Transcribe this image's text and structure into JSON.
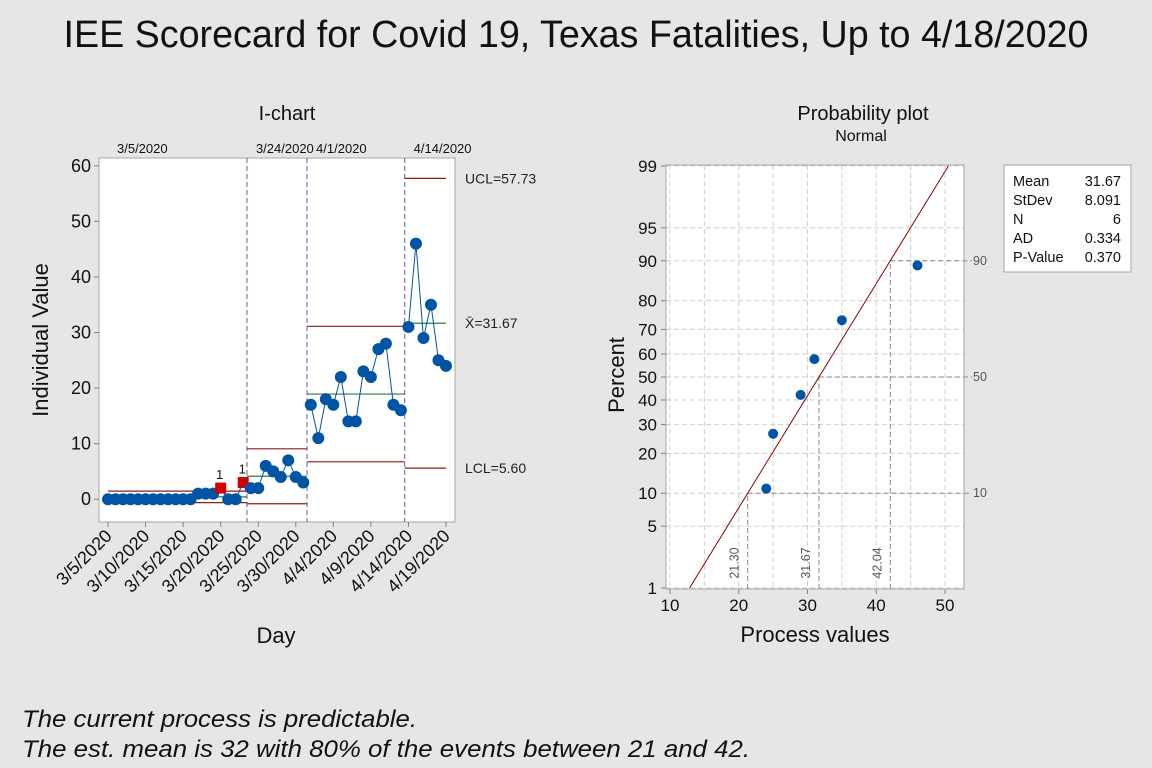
{
  "title": "IEE Scorecard for Covid 19, Texas Fatalities, Up to 4/18/2020",
  "chart_data": [
    {
      "type": "line",
      "name": "I-chart",
      "title": "I-chart",
      "xlabel": "Day",
      "ylabel": "Individual Value",
      "ylim": [
        -4.1,
        61.4
      ],
      "yticks": [
        0,
        10,
        20,
        30,
        40,
        50,
        60
      ],
      "xticks": [
        "3/5/2020",
        "3/10/2020",
        "3/15/2020",
        "3/20/2020",
        "3/25/2020",
        "3/30/2020",
        "4/4/2020",
        "4/9/2020",
        "4/14/2020",
        "4/19/2020"
      ],
      "grid": false,
      "x": [
        "3/5/2020",
        "3/6/2020",
        "3/7/2020",
        "3/8/2020",
        "3/9/2020",
        "3/10/2020",
        "3/11/2020",
        "3/12/2020",
        "3/13/2020",
        "3/14/2020",
        "3/15/2020",
        "3/16/2020",
        "3/17/2020",
        "3/18/2020",
        "3/19/2020",
        "3/20/2020",
        "3/21/2020",
        "3/22/2020",
        "3/23/2020",
        "3/24/2020",
        "3/25/2020",
        "3/26/2020",
        "3/27/2020",
        "3/28/2020",
        "3/29/2020",
        "3/30/2020",
        "3/31/2020",
        "4/1/2020",
        "4/2/2020",
        "4/3/2020",
        "4/4/2020",
        "4/5/2020",
        "4/6/2020",
        "4/7/2020",
        "4/8/2020",
        "4/9/2020",
        "4/10/2020",
        "4/11/2020",
        "4/12/2020",
        "4/13/2020",
        "4/14/2020",
        "4/15/2020",
        "4/16/2020",
        "4/17/2020",
        "4/18/2020",
        "4/19/2020"
      ],
      "series": [
        {
          "name": "Individual Value",
          "color": "#0054a6",
          "values": [
            0,
            0,
            0,
            0,
            0,
            0,
            0,
            0,
            0,
            0,
            0,
            0,
            1,
            1,
            1,
            2,
            0,
            0,
            3,
            2,
            2,
            6,
            5,
            4,
            7,
            4,
            3,
            17,
            11,
            18,
            17,
            22,
            14,
            14,
            23,
            22,
            27,
            28,
            17,
            16,
            31,
            46,
            29,
            35,
            25,
            24
          ]
        }
      ],
      "stages": [
        {
          "label": "3/5/2020",
          "start": "3/5/2020",
          "center": 0.42,
          "ucl": 1.46,
          "lcl": -0.61
        },
        {
          "label": "3/24/2020",
          "start": "3/24/2020",
          "center": 4.13,
          "ucl": 9.07,
          "lcl": -0.82
        },
        {
          "label": "4/1/2020",
          "start": "4/1/2020",
          "center": 18.92,
          "ucl": 31.11,
          "lcl": 6.73
        },
        {
          "label": "4/14/2020",
          "start": "4/14/2020",
          "center": 31.67,
          "ucl": 57.73,
          "lcl": 5.6
        }
      ],
      "flagged_points": [
        {
          "date": "3/20/2020",
          "value": 2,
          "test": "1"
        },
        {
          "date": "3/23/2020",
          "value": 3,
          "test": "1"
        }
      ],
      "limit_labels": {
        "ucl": "UCL=57.73",
        "center": "X̄=31.67",
        "lcl": "LCL=5.60"
      },
      "colors": {
        "points": "#0054a6",
        "flagged": "#d40000",
        "limits": "#8c1c1c",
        "center": "#267f3f",
        "stage_divider": "#6a5a9a"
      }
    },
    {
      "type": "scatter",
      "name": "Probability plot",
      "title": "Probability plot",
      "subtitle": "Normal",
      "xlabel": "Process values",
      "ylabel": "Percent",
      "xlim": [
        9.42,
        52.76
      ],
      "ylim": [
        1,
        99
      ],
      "xticks": [
        10,
        20,
        30,
        40,
        50
      ],
      "yticks": [
        1,
        5,
        10,
        20,
        30,
        40,
        50,
        60,
        70,
        80,
        90,
        95,
        99
      ],
      "grid": true,
      "xgrid": [
        10,
        15,
        20,
        25,
        30,
        35,
        40,
        45,
        50
      ],
      "points": [
        {
          "x": 24,
          "percent": 10.94
        },
        {
          "x": 25,
          "percent": 26.56
        },
        {
          "x": 29,
          "percent": 42.19
        },
        {
          "x": 31,
          "percent": 57.81
        },
        {
          "x": 35,
          "percent": 73.44
        },
        {
          "x": 46,
          "percent": 89.06
        }
      ],
      "fit_line": {
        "distribution": "Normal",
        "mean": 31.67,
        "stdev": 8.091,
        "color": "#8b0000"
      },
      "reference_lines": [
        {
          "percent": 10,
          "value": 21.3,
          "label": "21.30"
        },
        {
          "percent": 50,
          "value": 31.67,
          "label": "31.67"
        },
        {
          "percent": 90,
          "value": 42.04,
          "label": "42.04"
        }
      ],
      "stats": [
        {
          "label": "Mean",
          "value": "31.67"
        },
        {
          "label": "StDev",
          "value": "8.091"
        },
        {
          "label": "N",
          "value": "6"
        },
        {
          "label": "AD",
          "value": "0.334"
        },
        {
          "label": "P-Value",
          "value": "0.370"
        }
      ]
    }
  ],
  "footer": {
    "line1": "The current process is predictable.",
    "line2": "The est. mean is 32 with 80% of the events between 21 and 42."
  }
}
